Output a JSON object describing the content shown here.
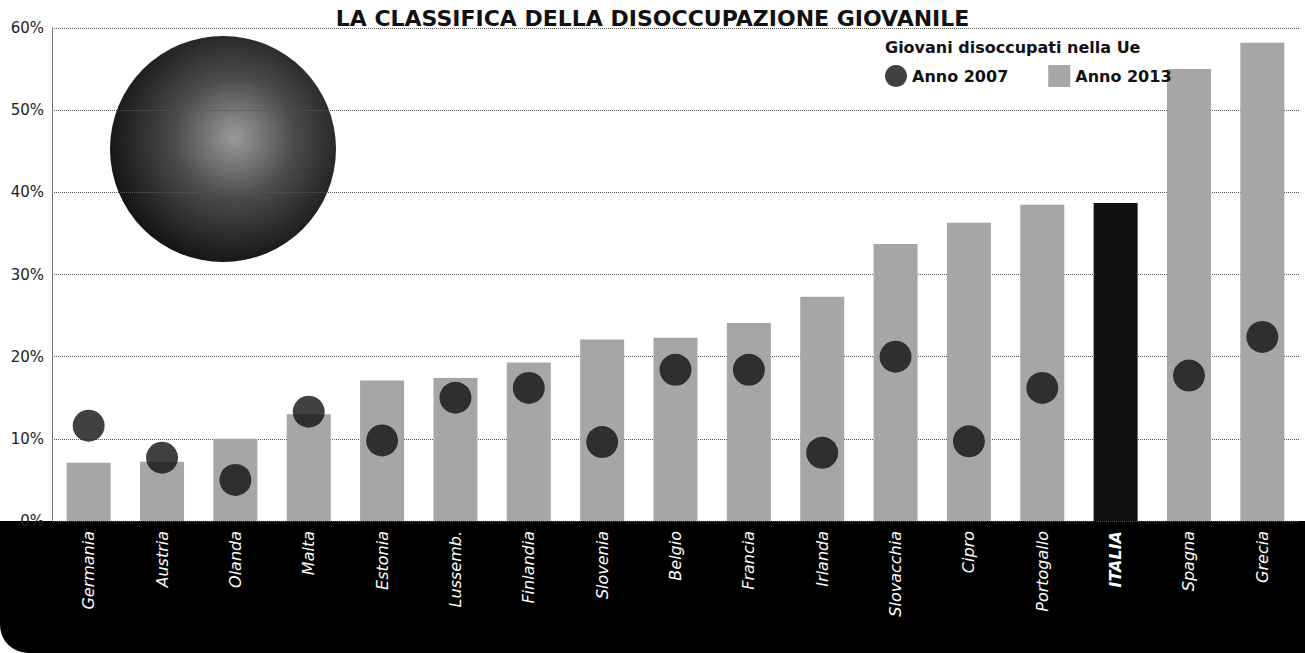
{
  "chart_data": {
    "type": "bar",
    "title": "LA CLASSIFICA DELLA DISOCCUPAZIONE GIOVANILE",
    "subtitle": "Giovani disoccupati nella Ue",
    "categories": [
      "Germania",
      "Austria",
      "Olanda",
      "Malta",
      "Estonia",
      "Lussemb.",
      "Finlandia",
      "Slovenia",
      "Belgio",
      "Francia",
      "Irlanda",
      "Slovacchia",
      "Cipro",
      "Portogallo",
      "ITALIA",
      "Spagna",
      "Grecia"
    ],
    "series": [
      {
        "name": "Anno 2007",
        "type": "scatter",
        "marker": "circle",
        "color": "#111111",
        "values": [
          11.6,
          7.7,
          5.0,
          13.3,
          9.8,
          15.0,
          16.2,
          9.6,
          18.4,
          18.4,
          8.3,
          20.0,
          9.7,
          16.2,
          null,
          17.7,
          22.4
        ]
      },
      {
        "name": "Anno 2013",
        "type": "bar",
        "color": "#a6a6a6",
        "colors": [
          "#a6a6a6",
          "#a6a6a6",
          "#a6a6a6",
          "#a6a6a6",
          "#a6a6a6",
          "#a6a6a6",
          "#a6a6a6",
          "#a6a6a6",
          "#a6a6a6",
          "#a6a6a6",
          "#a6a6a6",
          "#a6a6a6",
          "#a6a6a6",
          "#a6a6a6",
          "#111111",
          "#a6a6a6",
          "#a6a6a6"
        ],
        "values": [
          7.1,
          7.2,
          10.0,
          13.0,
          17.1,
          17.4,
          19.3,
          22.1,
          22.3,
          24.1,
          27.3,
          33.7,
          36.3,
          38.5,
          38.7,
          55.0,
          58.2
        ]
      }
    ],
    "ylim": [
      0,
      60
    ],
    "yticks": [
      {
        "value": 0,
        "label": "0%"
      },
      {
        "value": 10,
        "label": "10%"
      },
      {
        "value": 20,
        "label": "20%"
      },
      {
        "value": 30,
        "label": "30%"
      },
      {
        "value": 40,
        "label": "40%"
      },
      {
        "value": 50,
        "label": "50%"
      },
      {
        "value": 60,
        "label": "60%"
      }
    ],
    "grid": true,
    "legend": "upper right"
  }
}
